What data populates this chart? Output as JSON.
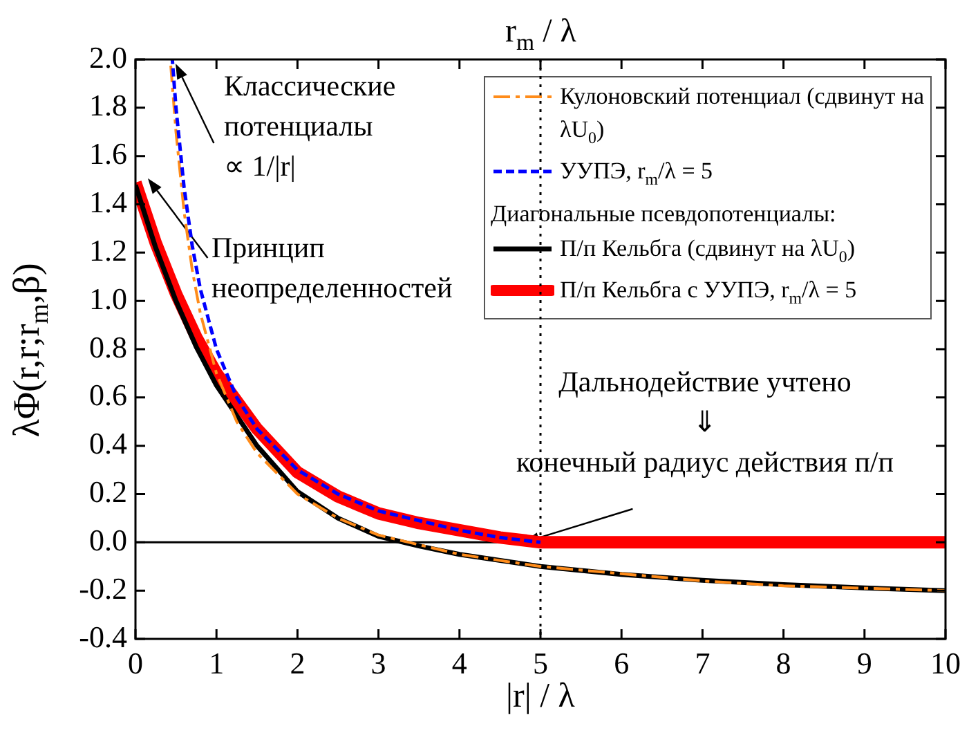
{
  "chart_data": {
    "type": "line",
    "xlabel": "|r| / λ",
    "ylabel": "λΦ(r,r;r$_{m}$,β)",
    "xlim": [
      0,
      10
    ],
    "xticks": [
      0,
      1,
      2,
      3,
      4,
      5,
      6,
      7,
      8,
      9,
      10
    ],
    "ylim": [
      -0.4,
      2.0
    ],
    "yticks": [
      {
        "value": -0.4,
        "label": "-0.4"
      },
      {
        "value": -0.2,
        "label": "-0.2"
      },
      {
        "value": 0,
        "label": "0.0"
      },
      {
        "value": 0.2,
        "label": "0.2"
      },
      {
        "value": 0.4,
        "label": "0.4"
      },
      {
        "value": 0.6,
        "label": "0.6"
      },
      {
        "value": 0.8,
        "label": "0.8"
      },
      {
        "value": 1.0,
        "label": "1.0"
      },
      {
        "value": 1.2,
        "label": "1.2"
      },
      {
        "value": 1.4,
        "label": "1.4"
      },
      {
        "value": 1.6,
        "label": "1.6"
      },
      {
        "value": 1.8,
        "label": "1.8"
      },
      {
        "value": 2.0,
        "label": "2.0"
      }
    ],
    "grid": false,
    "legend": "top right",
    "marker": "none",
    "legend_title": "Диагональные псевдопотенциалы:",
    "series": [
      {
        "name": "Кулоновский потенциал (сдвинут на λU$_{0}$)",
        "color": "#ff8c1a",
        "line_style": "dashdot",
        "x": [
          0.43,
          0.5,
          0.6,
          0.7,
          0.8,
          1,
          1.25,
          1.5,
          2,
          2.5,
          3,
          3.5,
          4,
          5,
          6,
          7,
          8,
          9,
          10
        ],
        "values": [
          2.0,
          1.7,
          1.37,
          1.13,
          0.95,
          0.7,
          0.5,
          0.37,
          0.2,
          0.1,
          0.03,
          -0.01,
          -0.05,
          -0.1,
          -0.13,
          -0.16,
          -0.18,
          -0.19,
          -0.2
        ]
      },
      {
        "name": "УУПЭ, r$_{m}$/λ = 5",
        "color": "#0000ff",
        "line_style": "dashed",
        "x": [
          0.455,
          0.5,
          0.6,
          0.7,
          0.8,
          1,
          1.25,
          1.5,
          2,
          2.5,
          3,
          3.5,
          4,
          4.5,
          5
        ],
        "values": [
          2.0,
          1.8,
          1.47,
          1.23,
          1.05,
          0.8,
          0.6,
          0.47,
          0.3,
          0.2,
          0.13,
          0.09,
          0.05,
          0.02,
          0
        ]
      },
      {
        "name": "П/п Кельбга (сдвинут на λU$_{0}$)",
        "color": "#000000",
        "line_style": "solid",
        "x": [
          0,
          0.25,
          0.5,
          0.75,
          1,
          1.5,
          2,
          2.5,
          3,
          3.5,
          4,
          5,
          6,
          7,
          8,
          9,
          10
        ],
        "values": [
          1.48,
          1.22,
          1.0,
          0.81,
          0.65,
          0.4,
          0.21,
          0.1,
          0.025,
          -0.015,
          -0.05,
          -0.1,
          -0.133,
          -0.157,
          -0.175,
          -0.189,
          -0.2
        ]
      },
      {
        "name": "П/п Кельбга с УУПЭ, r$_{m}$/λ  = 5",
        "color": "#ff0000",
        "line_style": "solid",
        "x": [
          0,
          0.25,
          0.5,
          0.75,
          1,
          1.5,
          2,
          2.5,
          3,
          3.5,
          4,
          4.5,
          5,
          10
        ],
        "values": [
          1.49,
          1.24,
          1.03,
          0.85,
          0.7,
          0.47,
          0.29,
          0.19,
          0.12,
          0.08,
          0.05,
          0.02,
          0,
          0
        ]
      }
    ],
    "ref_lines": [
      {
        "axis": "y",
        "value": 0,
        "color": "#000000",
        "line_style": "solid"
      },
      {
        "axis": "x",
        "value": 5,
        "label": "r$_{m}$ / λ",
        "color": "#000000",
        "line_style": "dotted"
      }
    ],
    "annotations": [
      {
        "text": "Классические\nпотенциалы\n∝ 1/|r|",
        "x": 0.5,
        "y": 1.98
      },
      {
        "text": "Принцип\nнеопределенностей",
        "x": 0.15,
        "y": 1.51
      },
      {
        "text": "Дальнодействие учтено\n⇓\nконечный радиус действия п/п",
        "x": 4.8,
        "y": 0
      }
    ]
  }
}
